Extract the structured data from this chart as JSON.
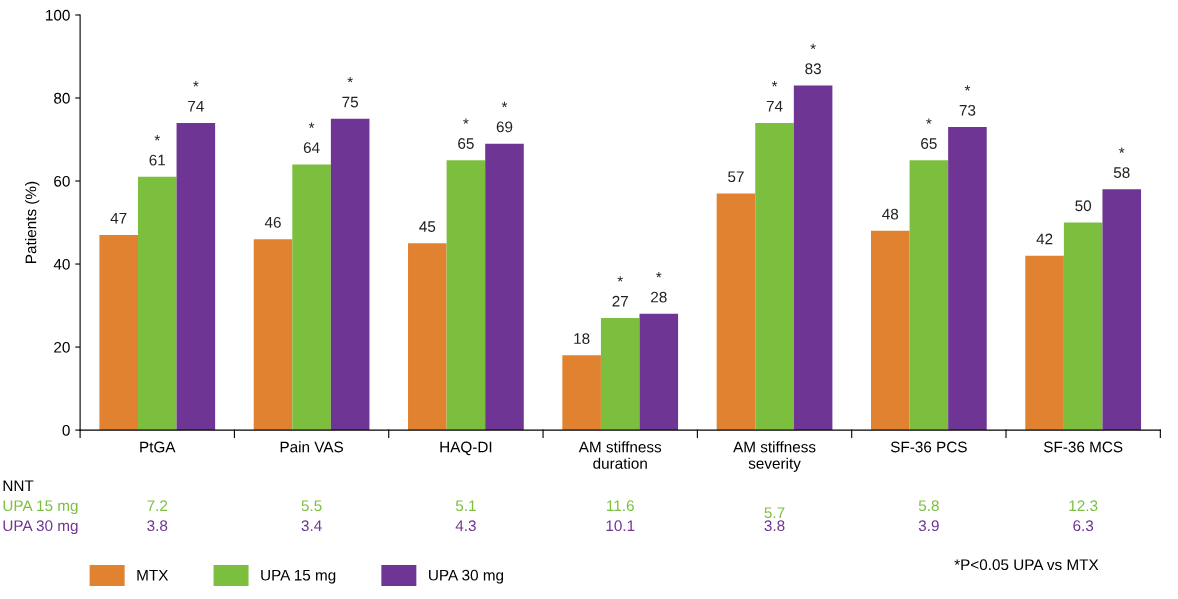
{
  "chart_data": {
    "type": "bar",
    "ylabel": "Patients (%)",
    "categories": [
      "PtGA",
      "Pain VAS",
      "HAQ-DI",
      "AM stiffness\nduration",
      "AM stiffness\nseverity",
      "SF-36 PCS",
      "SF-36 MCS"
    ],
    "series": [
      {
        "name": "MTX",
        "color": "#e0822f",
        "values": [
          47,
          46,
          45,
          18,
          57,
          48,
          42
        ],
        "value_labels": [
          "47",
          "46",
          "45",
          "18",
          "57",
          "48",
          "42"
        ]
      },
      {
        "name": "UPA 15 mg",
        "color": "#7cbf3f",
        "values": [
          61,
          64,
          65,
          27,
          74,
          65,
          50
        ],
        "value_labels": [
          "*\n61",
          "*\n64",
          "*\n65",
          "*\n27",
          "*\n74",
          "*\n65",
          "50"
        ]
      },
      {
        "name": "UPA 30 mg",
        "color": "#6f3594",
        "values": [
          74,
          75,
          69,
          28,
          83,
          73,
          58
        ],
        "value_labels": [
          "*\n74",
          "*\n75",
          "*\n69",
          "*\n28",
          "*\n83",
          "*\n73",
          "*\n58"
        ]
      }
    ],
    "ylim": [
      0,
      100
    ],
    "yticks": [
      0,
      20,
      40,
      60,
      80,
      100
    ],
    "grid": false,
    "legend": "bottom",
    "annotations": [
      "NNT",
      "UPA 15 mg",
      "7.2",
      "5.5",
      "5.1",
      "11.6",
      "5.7",
      "5.8",
      "12.3",
      "UPA 30 mg",
      "3.8",
      "3.4",
      "4.3",
      "10.1",
      "3.8",
      "3.9",
      "6.3",
      "*P<0.05 UPA vs MTX"
    ]
  }
}
